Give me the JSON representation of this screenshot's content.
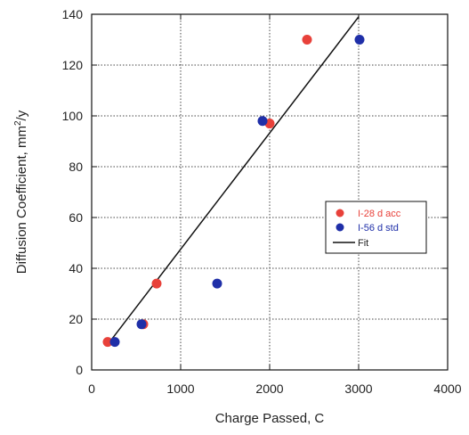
{
  "chart_data": {
    "type": "scatter",
    "title": "",
    "xlabel": "Charge Passed, C",
    "ylabel_prefix": "Diffusion Coefficient, mm",
    "ylabel_sup": "2",
    "ylabel_suffix": "/y",
    "xlim": [
      0,
      4000
    ],
    "ylim": [
      0,
      140
    ],
    "x_ticks": [
      0,
      1000,
      2000,
      3000,
      4000
    ],
    "y_ticks": [
      0,
      20,
      40,
      60,
      80,
      100,
      120,
      140
    ],
    "x_tick_labels": [
      "0",
      "1000",
      "2000",
      "3000",
      "4000"
    ],
    "y_tick_labels": [
      "0",
      "20",
      "40",
      "60",
      "80",
      "100",
      "120",
      "140"
    ],
    "grid": true,
    "grid_style": "dotted",
    "legend_placement": "center-right",
    "series": [
      {
        "name": "I-28 d acc",
        "color": "#e8413a",
        "points": [
          {
            "x": 180,
            "y": 11
          },
          {
            "x": 580,
            "y": 18
          },
          {
            "x": 730,
            "y": 34
          },
          {
            "x": 2000,
            "y": 97
          },
          {
            "x": 2420,
            "y": 130
          }
        ]
      },
      {
        "name": "I-56 d std",
        "color": "#1f2fa8",
        "points": [
          {
            "x": 260,
            "y": 11
          },
          {
            "x": 560,
            "y": 18
          },
          {
            "x": 1410,
            "y": 34
          },
          {
            "x": 1920,
            "y": 98
          },
          {
            "x": 3010,
            "y": 130
          }
        ]
      }
    ],
    "fit": {
      "name": "Fit",
      "color": "#111111",
      "points": [
        {
          "x": 180,
          "y": 10
        },
        {
          "x": 3000,
          "y": 139
        }
      ]
    }
  }
}
